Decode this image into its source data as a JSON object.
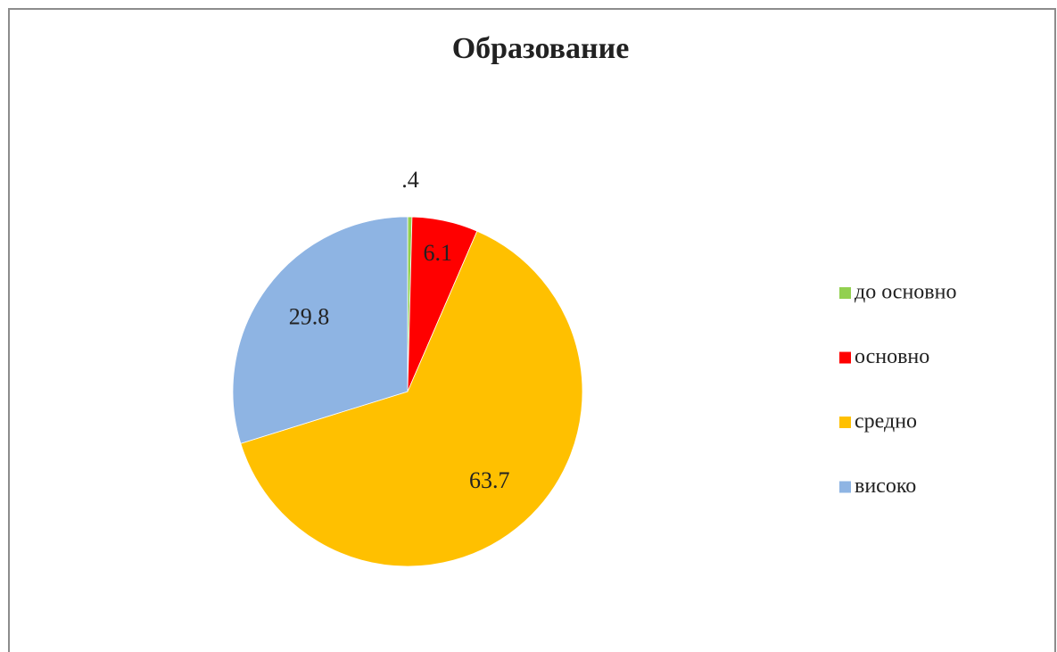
{
  "chart_data": {
    "type": "pie",
    "title": "Образование",
    "categories": [
      "до основно",
      "основно",
      "средно",
      "високо"
    ],
    "values": [
      0.4,
      6.1,
      63.7,
      29.8
    ],
    "value_labels": [
      ".4",
      "6.1",
      "63.7",
      "29.8"
    ],
    "colors": [
      "#92d050",
      "#ff0000",
      "#ffc000",
      "#8eb4e3"
    ],
    "legend": "right"
  }
}
